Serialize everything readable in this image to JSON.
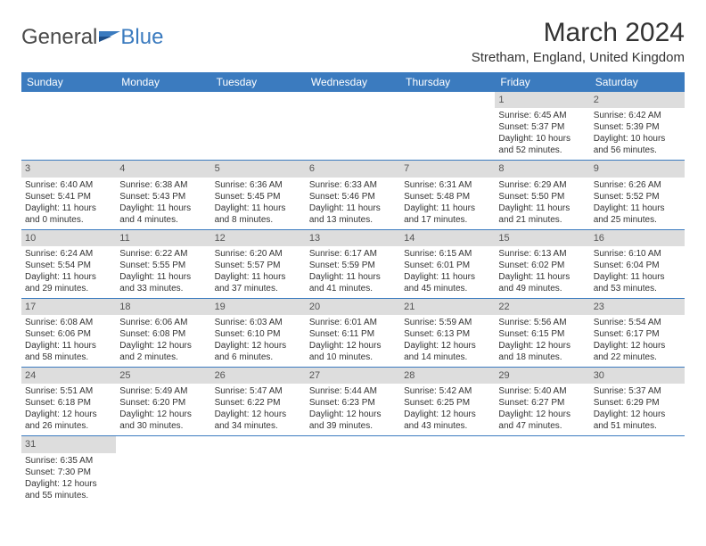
{
  "logo": {
    "text1": "General",
    "text2": "Blue"
  },
  "title": "March 2024",
  "location": "Stretham, England, United Kingdom",
  "colors": {
    "header_bg": "#3b7bbf",
    "header_text": "#ffffff",
    "daynum_bg": "#dddddd",
    "daynum_text": "#555555",
    "border": "#3b7bbf",
    "body_text": "#333333",
    "logo_gray": "#4a4a4a",
    "logo_blue": "#3b7bbf"
  },
  "weekdays": [
    "Sunday",
    "Monday",
    "Tuesday",
    "Wednesday",
    "Thursday",
    "Friday",
    "Saturday"
  ],
  "weeks": [
    [
      null,
      null,
      null,
      null,
      null,
      {
        "n": "1",
        "sr": "Sunrise: 6:45 AM",
        "ss": "Sunset: 5:37 PM",
        "dl": "Daylight: 10 hours and 52 minutes."
      },
      {
        "n": "2",
        "sr": "Sunrise: 6:42 AM",
        "ss": "Sunset: 5:39 PM",
        "dl": "Daylight: 10 hours and 56 minutes."
      }
    ],
    [
      {
        "n": "3",
        "sr": "Sunrise: 6:40 AM",
        "ss": "Sunset: 5:41 PM",
        "dl": "Daylight: 11 hours and 0 minutes."
      },
      {
        "n": "4",
        "sr": "Sunrise: 6:38 AM",
        "ss": "Sunset: 5:43 PM",
        "dl": "Daylight: 11 hours and 4 minutes."
      },
      {
        "n": "5",
        "sr": "Sunrise: 6:36 AM",
        "ss": "Sunset: 5:45 PM",
        "dl": "Daylight: 11 hours and 8 minutes."
      },
      {
        "n": "6",
        "sr": "Sunrise: 6:33 AM",
        "ss": "Sunset: 5:46 PM",
        "dl": "Daylight: 11 hours and 13 minutes."
      },
      {
        "n": "7",
        "sr": "Sunrise: 6:31 AM",
        "ss": "Sunset: 5:48 PM",
        "dl": "Daylight: 11 hours and 17 minutes."
      },
      {
        "n": "8",
        "sr": "Sunrise: 6:29 AM",
        "ss": "Sunset: 5:50 PM",
        "dl": "Daylight: 11 hours and 21 minutes."
      },
      {
        "n": "9",
        "sr": "Sunrise: 6:26 AM",
        "ss": "Sunset: 5:52 PM",
        "dl": "Daylight: 11 hours and 25 minutes."
      }
    ],
    [
      {
        "n": "10",
        "sr": "Sunrise: 6:24 AM",
        "ss": "Sunset: 5:54 PM",
        "dl": "Daylight: 11 hours and 29 minutes."
      },
      {
        "n": "11",
        "sr": "Sunrise: 6:22 AM",
        "ss": "Sunset: 5:55 PM",
        "dl": "Daylight: 11 hours and 33 minutes."
      },
      {
        "n": "12",
        "sr": "Sunrise: 6:20 AM",
        "ss": "Sunset: 5:57 PM",
        "dl": "Daylight: 11 hours and 37 minutes."
      },
      {
        "n": "13",
        "sr": "Sunrise: 6:17 AM",
        "ss": "Sunset: 5:59 PM",
        "dl": "Daylight: 11 hours and 41 minutes."
      },
      {
        "n": "14",
        "sr": "Sunrise: 6:15 AM",
        "ss": "Sunset: 6:01 PM",
        "dl": "Daylight: 11 hours and 45 minutes."
      },
      {
        "n": "15",
        "sr": "Sunrise: 6:13 AM",
        "ss": "Sunset: 6:02 PM",
        "dl": "Daylight: 11 hours and 49 minutes."
      },
      {
        "n": "16",
        "sr": "Sunrise: 6:10 AM",
        "ss": "Sunset: 6:04 PM",
        "dl": "Daylight: 11 hours and 53 minutes."
      }
    ],
    [
      {
        "n": "17",
        "sr": "Sunrise: 6:08 AM",
        "ss": "Sunset: 6:06 PM",
        "dl": "Daylight: 11 hours and 58 minutes."
      },
      {
        "n": "18",
        "sr": "Sunrise: 6:06 AM",
        "ss": "Sunset: 6:08 PM",
        "dl": "Daylight: 12 hours and 2 minutes."
      },
      {
        "n": "19",
        "sr": "Sunrise: 6:03 AM",
        "ss": "Sunset: 6:10 PM",
        "dl": "Daylight: 12 hours and 6 minutes."
      },
      {
        "n": "20",
        "sr": "Sunrise: 6:01 AM",
        "ss": "Sunset: 6:11 PM",
        "dl": "Daylight: 12 hours and 10 minutes."
      },
      {
        "n": "21",
        "sr": "Sunrise: 5:59 AM",
        "ss": "Sunset: 6:13 PM",
        "dl": "Daylight: 12 hours and 14 minutes."
      },
      {
        "n": "22",
        "sr": "Sunrise: 5:56 AM",
        "ss": "Sunset: 6:15 PM",
        "dl": "Daylight: 12 hours and 18 minutes."
      },
      {
        "n": "23",
        "sr": "Sunrise: 5:54 AM",
        "ss": "Sunset: 6:17 PM",
        "dl": "Daylight: 12 hours and 22 minutes."
      }
    ],
    [
      {
        "n": "24",
        "sr": "Sunrise: 5:51 AM",
        "ss": "Sunset: 6:18 PM",
        "dl": "Daylight: 12 hours and 26 minutes."
      },
      {
        "n": "25",
        "sr": "Sunrise: 5:49 AM",
        "ss": "Sunset: 6:20 PM",
        "dl": "Daylight: 12 hours and 30 minutes."
      },
      {
        "n": "26",
        "sr": "Sunrise: 5:47 AM",
        "ss": "Sunset: 6:22 PM",
        "dl": "Daylight: 12 hours and 34 minutes."
      },
      {
        "n": "27",
        "sr": "Sunrise: 5:44 AM",
        "ss": "Sunset: 6:23 PM",
        "dl": "Daylight: 12 hours and 39 minutes."
      },
      {
        "n": "28",
        "sr": "Sunrise: 5:42 AM",
        "ss": "Sunset: 6:25 PM",
        "dl": "Daylight: 12 hours and 43 minutes."
      },
      {
        "n": "29",
        "sr": "Sunrise: 5:40 AM",
        "ss": "Sunset: 6:27 PM",
        "dl": "Daylight: 12 hours and 47 minutes."
      },
      {
        "n": "30",
        "sr": "Sunrise: 5:37 AM",
        "ss": "Sunset: 6:29 PM",
        "dl": "Daylight: 12 hours and 51 minutes."
      }
    ],
    [
      {
        "n": "31",
        "sr": "Sunrise: 6:35 AM",
        "ss": "Sunset: 7:30 PM",
        "dl": "Daylight: 12 hours and 55 minutes."
      },
      null,
      null,
      null,
      null,
      null,
      null
    ]
  ]
}
